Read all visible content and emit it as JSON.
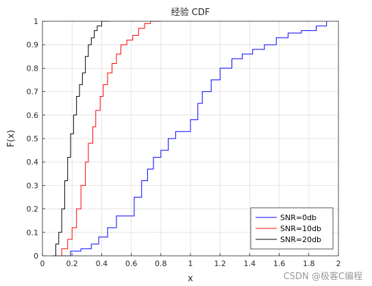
{
  "chart_data": {
    "type": "line",
    "step": true,
    "title": "经验 CDF",
    "xlabel": "x",
    "ylabel": "F(x)",
    "xlim": [
      0,
      2
    ],
    "ylim": [
      0,
      1
    ],
    "xticks": [
      "0",
      "0.2",
      "0.4",
      "0.6",
      "0.8",
      "1",
      "1.2",
      "1.4",
      "1.6",
      "1.8",
      "2"
    ],
    "yticks": [
      "0",
      "0.1",
      "0.2",
      "0.3",
      "0.4",
      "0.5",
      "0.6",
      "0.7",
      "0.8",
      "0.9",
      "1"
    ],
    "grid": true,
    "legend_position": "bottom-right",
    "series": [
      {
        "name": "SNR=0db",
        "color": "#0000ff",
        "x": [
          0.12,
          0.19,
          0.26,
          0.33,
          0.38,
          0.44,
          0.5,
          0.56,
          0.62,
          0.67,
          0.71,
          0.75,
          0.8,
          0.85,
          0.9,
          0.95,
          1.0,
          1.05,
          1.08,
          1.14,
          1.2,
          1.28,
          1.35,
          1.42,
          1.5,
          1.58,
          1.66,
          1.75,
          1.85,
          1.92
        ],
        "y": [
          0.0,
          0.02,
          0.03,
          0.05,
          0.08,
          0.12,
          0.17,
          0.17,
          0.25,
          0.32,
          0.37,
          0.42,
          0.45,
          0.5,
          0.53,
          0.53,
          0.58,
          0.65,
          0.7,
          0.75,
          0.8,
          0.84,
          0.86,
          0.88,
          0.9,
          0.93,
          0.95,
          0.96,
          0.98,
          1.0
        ]
      },
      {
        "name": "SNR=10db",
        "color": "#ff0000",
        "x": [
          0.09,
          0.13,
          0.17,
          0.2,
          0.23,
          0.26,
          0.29,
          0.31,
          0.34,
          0.36,
          0.39,
          0.41,
          0.44,
          0.47,
          0.5,
          0.53,
          0.57,
          0.61,
          0.65,
          0.69,
          0.73,
          0.8
        ],
        "y": [
          0.0,
          0.03,
          0.07,
          0.12,
          0.2,
          0.3,
          0.4,
          0.48,
          0.55,
          0.62,
          0.68,
          0.73,
          0.78,
          0.82,
          0.86,
          0.9,
          0.92,
          0.94,
          0.97,
          0.99,
          1.0,
          1.0
        ]
      },
      {
        "name": "SNR=20db",
        "color": "#000000",
        "x": [
          0.07,
          0.09,
          0.11,
          0.13,
          0.15,
          0.17,
          0.19,
          0.21,
          0.23,
          0.25,
          0.27,
          0.29,
          0.31,
          0.33,
          0.35,
          0.37,
          0.4,
          0.43,
          0.45
        ],
        "y": [
          0.0,
          0.05,
          0.1,
          0.2,
          0.32,
          0.42,
          0.52,
          0.6,
          0.68,
          0.73,
          0.78,
          0.85,
          0.9,
          0.93,
          0.96,
          0.98,
          1.0,
          1.0,
          1.0
        ]
      }
    ]
  },
  "watermark": "CSDN @极客C编程"
}
